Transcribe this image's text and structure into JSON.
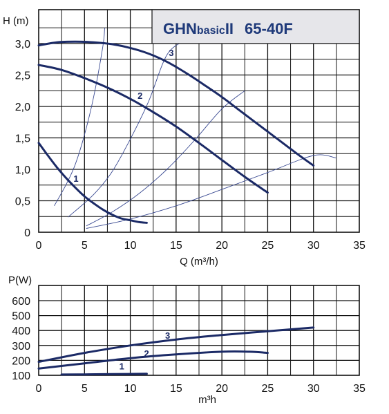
{
  "chart_data": [
    {
      "type": "line",
      "title": "GHNbasicII  65-40F",
      "title_model": "GHN",
      "title_basic": "basic",
      "title_series": "II",
      "title_size": "65-40F",
      "xlabel": "Q (m³/h)",
      "ylabel": "H (m)",
      "xlim": [
        0,
        35
      ],
      "ylim": [
        0,
        3.0
      ],
      "x_ticks": [
        "0",
        "5",
        "10",
        "15",
        "20",
        "25",
        "30",
        "35"
      ],
      "y_ticks": [
        "0",
        "0,5",
        "1,0",
        "1,5",
        "2,0",
        "2,5",
        "3,0"
      ],
      "grid": true,
      "series": [
        {
          "name": "1",
          "color": "#1b2a66",
          "points": [
            [
              0,
              1.42
            ],
            [
              1,
              1.22
            ],
            [
              2,
              1.03
            ],
            [
              3,
              0.86
            ],
            [
              4,
              0.71
            ],
            [
              5,
              0.57
            ],
            [
              6,
              0.46
            ],
            [
              7,
              0.36
            ],
            [
              8,
              0.28
            ],
            [
              9,
              0.22
            ],
            [
              10,
              0.19
            ],
            [
              11,
              0.16
            ],
            [
              11.8,
              0.15
            ]
          ]
        },
        {
          "name": "2",
          "color": "#1b2a66",
          "points": [
            [
              0,
              2.66
            ],
            [
              2.5,
              2.58
            ],
            [
              5,
              2.45
            ],
            [
              7.5,
              2.3
            ],
            [
              10,
              2.12
            ],
            [
              12.5,
              1.91
            ],
            [
              15,
              1.68
            ],
            [
              17.5,
              1.42
            ],
            [
              20,
              1.15
            ],
            [
              22.5,
              0.88
            ],
            [
              25,
              0.63
            ]
          ]
        },
        {
          "name": "3",
          "color": "#1b2a66",
          "points": [
            [
              0,
              2.97
            ],
            [
              2,
              3.02
            ],
            [
              4,
              3.03
            ],
            [
              6,
              3.02
            ],
            [
              8,
              2.99
            ],
            [
              10,
              2.93
            ],
            [
              12,
              2.84
            ],
            [
              14,
              2.71
            ],
            [
              16,
              2.54
            ],
            [
              18,
              2.35
            ],
            [
              20,
              2.15
            ],
            [
              22,
              1.93
            ],
            [
              24,
              1.71
            ],
            [
              26,
              1.49
            ],
            [
              28,
              1.27
            ],
            [
              30,
              1.06
            ]
          ]
        }
      ],
      "system_curves": [
        [
          [
            1.7,
            0.42
          ],
          [
            3,
            0.76
          ],
          [
            4,
            1.08
          ],
          [
            5,
            1.55
          ],
          [
            6,
            2.15
          ],
          [
            7,
            2.95
          ],
          [
            7.2,
            3.25
          ]
        ],
        [
          [
            3.2,
            0.24
          ],
          [
            6,
            0.6
          ],
          [
            8,
            0.96
          ],
          [
            10,
            1.48
          ],
          [
            12,
            2.08
          ],
          [
            14,
            2.82
          ],
          [
            16,
            3.05
          ]
        ],
        [
          [
            5.2,
            0.1
          ],
          [
            8,
            0.32
          ],
          [
            11,
            0.62
          ],
          [
            14,
            1.0
          ],
          [
            17,
            1.46
          ],
          [
            20,
            1.96
          ],
          [
            22.5,
            2.25
          ]
        ],
        [
          [
            5.2,
            0.06
          ],
          [
            10,
            0.21
          ],
          [
            15,
            0.42
          ],
          [
            20,
            0.68
          ],
          [
            25,
            0.95
          ],
          [
            30,
            1.22
          ],
          [
            32.5,
            1.18
          ]
        ]
      ],
      "curve_label_positions": [
        [
          3.8,
          0.8
        ],
        [
          10.8,
          2.12
        ],
        [
          14.2,
          2.8
        ]
      ]
    },
    {
      "type": "line",
      "xlabel": "m³h",
      "ylabel": "P(W)",
      "xlim": [
        0,
        35
      ],
      "ylim": [
        100,
        700
      ],
      "x_ticks": [
        "0",
        "5",
        "10",
        "15",
        "20",
        "25",
        "30",
        "35"
      ],
      "y_ticks": [
        "100",
        "200",
        "300",
        "400",
        "500",
        "600"
      ],
      "grid": true,
      "series": [
        {
          "name": "1",
          "color": "#1b2a66",
          "points": [
            [
              2.5,
              105
            ],
            [
              5,
              106
            ],
            [
              8,
              108
            ],
            [
              11.8,
              110
            ]
          ]
        },
        {
          "name": "2",
          "color": "#1b2a66",
          "points": [
            [
              0,
              145
            ],
            [
              5,
              180
            ],
            [
              10,
              215
            ],
            [
              15,
              240
            ],
            [
              20,
              258
            ],
            [
              23,
              258
            ],
            [
              25,
              250
            ]
          ]
        },
        {
          "name": "3",
          "color": "#1b2a66",
          "points": [
            [
              0,
              190
            ],
            [
              5,
              250
            ],
            [
              10,
              300
            ],
            [
              15,
              340
            ],
            [
              20,
              370
            ],
            [
              25,
              395
            ],
            [
              30,
              420
            ]
          ]
        }
      ],
      "curve_label_positions": [
        [
          8.8,
          140
        ],
        [
          11.5,
          225
        ],
        [
          13.8,
          345
        ]
      ]
    }
  ]
}
